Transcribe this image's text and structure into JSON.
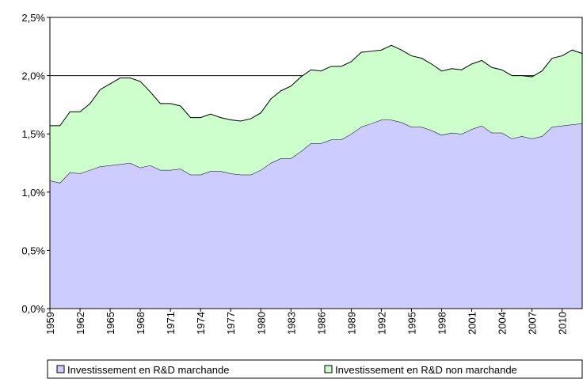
{
  "chart_data": {
    "type": "area",
    "stacked": true,
    "x": [
      1959,
      1960,
      1961,
      1962,
      1963,
      1964,
      1965,
      1966,
      1967,
      1968,
      1969,
      1970,
      1971,
      1972,
      1973,
      1974,
      1975,
      1976,
      1977,
      1978,
      1979,
      1980,
      1981,
      1982,
      1983,
      1984,
      1985,
      1986,
      1987,
      1988,
      1989,
      1990,
      1991,
      1992,
      1993,
      1994,
      1995,
      1996,
      1997,
      1998,
      1999,
      2000,
      2001,
      2002,
      2003,
      2004,
      2005,
      2006,
      2007,
      2008,
      2009,
      2010,
      2011,
      2012
    ],
    "series": [
      {
        "name": "Investissement en R&D marchande",
        "color": "#ccccff",
        "values": [
          1.1,
          1.08,
          1.17,
          1.16,
          1.19,
          1.22,
          1.23,
          1.24,
          1.25,
          1.21,
          1.23,
          1.19,
          1.19,
          1.2,
          1.15,
          1.15,
          1.18,
          1.18,
          1.16,
          1.15,
          1.15,
          1.19,
          1.25,
          1.29,
          1.29,
          1.35,
          1.42,
          1.42,
          1.45,
          1.45,
          1.5,
          1.56,
          1.59,
          1.62,
          1.62,
          1.6,
          1.56,
          1.56,
          1.53,
          1.49,
          1.51,
          1.5,
          1.54,
          1.57,
          1.51,
          1.51,
          1.46,
          1.48,
          1.46,
          1.48,
          1.56,
          1.57,
          1.58,
          1.59
        ]
      },
      {
        "name": "Investissement en R&D non marchande",
        "color": "#ccffcc",
        "values": [
          0.47,
          0.49,
          0.52,
          0.53,
          0.57,
          0.66,
          0.7,
          0.74,
          0.73,
          0.74,
          0.63,
          0.57,
          0.57,
          0.54,
          0.49,
          0.49,
          0.49,
          0.46,
          0.46,
          0.46,
          0.48,
          0.49,
          0.55,
          0.58,
          0.62,
          0.64,
          0.63,
          0.62,
          0.63,
          0.63,
          0.62,
          0.64,
          0.62,
          0.6,
          0.64,
          0.62,
          0.61,
          0.59,
          0.57,
          0.55,
          0.55,
          0.55,
          0.56,
          0.56,
          0.56,
          0.54,
          0.54,
          0.52,
          0.53,
          0.56,
          0.59,
          0.6,
          0.64,
          0.6
        ]
      }
    ],
    "xlim": [
      1959,
      2012
    ],
    "xticks": [
      1959,
      1962,
      1965,
      1968,
      1971,
      1974,
      1977,
      1980,
      1983,
      1986,
      1989,
      1992,
      1995,
      1998,
      2001,
      2004,
      2007,
      2010
    ],
    "ylim": [
      0,
      2.5
    ],
    "yticks": [
      {
        "value": 0,
        "label": "0,0%"
      },
      {
        "value": 0.5,
        "label": "0,5%"
      },
      {
        "value": 1.0,
        "label": "1,0%"
      },
      {
        "value": 1.5,
        "label": "1,5%"
      },
      {
        "value": 2.0,
        "label": "2,0%"
      },
      {
        "value": 2.5,
        "label": "2,5%"
      }
    ],
    "grid": true,
    "legend": "bottom"
  }
}
